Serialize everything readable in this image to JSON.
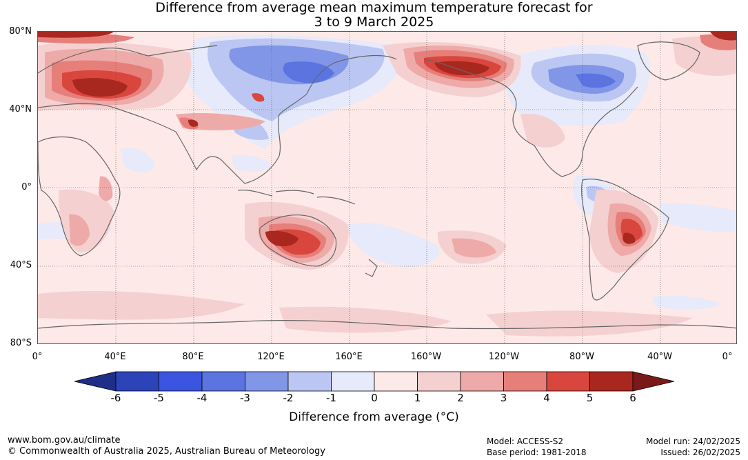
{
  "title": {
    "line1": "Difference from average mean maximum temperature forecast for",
    "line2": "3 to 9 March 2025"
  },
  "axes": {
    "lat_labels": [
      "80°N",
      "40°N",
      "0°",
      "40°S",
      "80°S"
    ],
    "lon_labels": [
      "0°",
      "40°E",
      "80°E",
      "120°E",
      "160°E",
      "160°W",
      "120°W",
      "80°W",
      "40°W",
      "0°"
    ]
  },
  "colorbar": {
    "ticks": [
      "-6",
      "-5",
      "-4",
      "-3",
      "-2",
      "-1",
      "0",
      "1",
      "2",
      "3",
      "4",
      "5",
      "6"
    ],
    "label": "Difference from average (°C)",
    "colors": [
      "#1f2e88",
      "#2d44b8",
      "#3b55e0",
      "#5b74e0",
      "#8296e8",
      "#bcc6f2",
      "#e6eafa",
      "#fde9e8",
      "#f5d0d0",
      "#eeaaa8",
      "#e67f7a",
      "#d9463e",
      "#a82820",
      "#7a1a18"
    ]
  },
  "footer": {
    "website": "www.bom.gov.au/climate",
    "copyright": "© Commonwealth of Australia 2025, Australian Bureau of Meteorology",
    "model": "Model: ACCESS-S2",
    "base_period": "Base period: 1981-2018",
    "model_run": "Model run: 24/02/2025",
    "issued": "Issued: 26/02/2025"
  }
}
